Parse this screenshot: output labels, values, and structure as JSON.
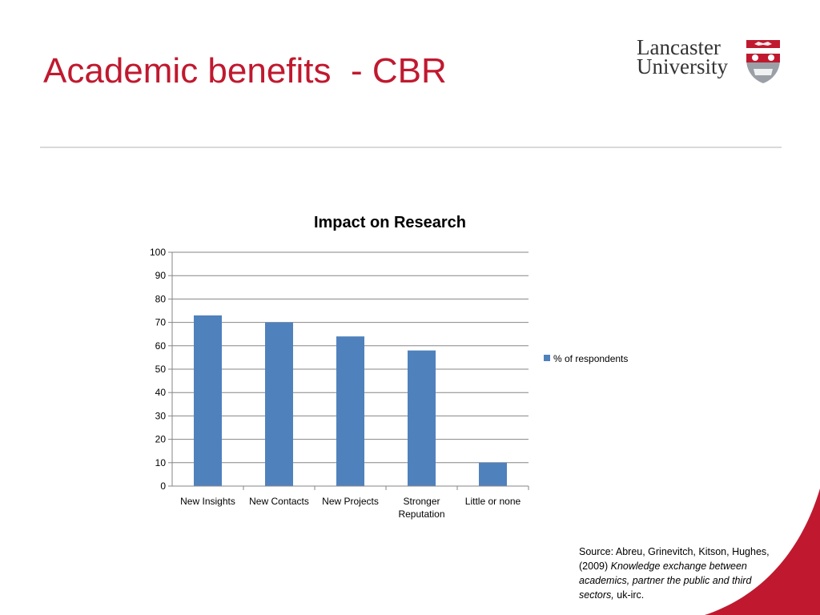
{
  "slide": {
    "title": "Academic benefits  - CBR"
  },
  "logo": {
    "line1": "Lancaster",
    "line2": "University",
    "crest_colors": {
      "red": "#c0192f",
      "gray": "#9aa0a6"
    }
  },
  "source": {
    "prefix": "Source:  Abreu, Grinevitch, Kitson, Hughes, (2009) ",
    "title_italic": "Knowledge exchange between academics, partner the public and third sectors,",
    "suffix": "  uk-irc."
  },
  "colors": {
    "accent": "#c0192f",
    "bar": "#4f81bd"
  },
  "chart_data": {
    "type": "bar",
    "title": "Impact on Research",
    "xlabel": "",
    "ylabel": "",
    "categories": [
      "New Insights",
      "New Contacts",
      "New Projects",
      "Stronger Reputation",
      "Little or none"
    ],
    "series": [
      {
        "name": "% of respondents",
        "values": [
          73,
          70,
          64,
          58,
          10
        ]
      }
    ],
    "ylim": [
      0,
      100
    ],
    "yticks": [
      0,
      10,
      20,
      30,
      40,
      50,
      60,
      70,
      80,
      90,
      100
    ],
    "grid": true,
    "legend": "right"
  }
}
